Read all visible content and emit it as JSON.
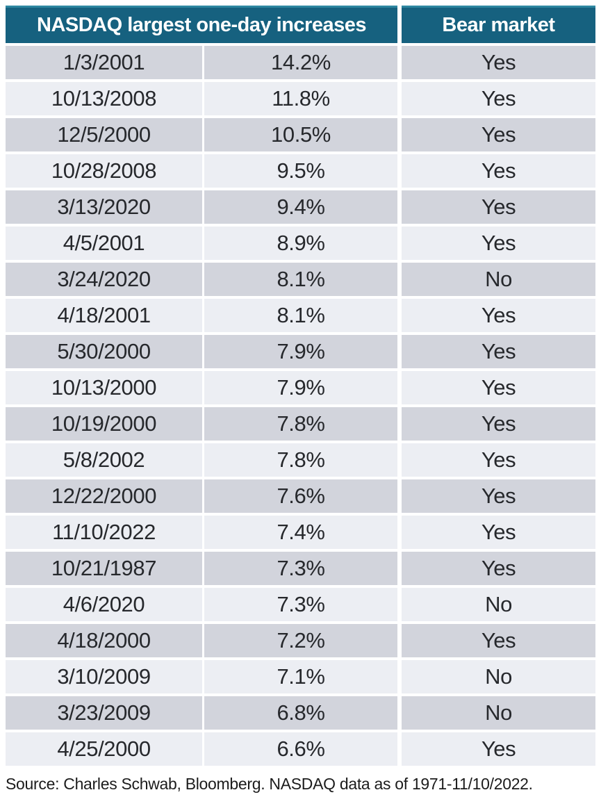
{
  "chart_data": {
    "type": "table",
    "header_main": "NASDAQ largest one-day increases",
    "header_bear": "Bear market",
    "rows": [
      [
        "1/3/2001",
        "14.2%",
        "Yes"
      ],
      [
        "10/13/2008",
        "11.8%",
        "Yes"
      ],
      [
        "12/5/2000",
        "10.5%",
        "Yes"
      ],
      [
        "10/28/2008",
        "9.5%",
        "Yes"
      ],
      [
        "3/13/2020",
        "9.4%",
        "Yes"
      ],
      [
        "4/5/2001",
        "8.9%",
        "Yes"
      ],
      [
        "3/24/2020",
        "8.1%",
        "No"
      ],
      [
        "4/18/2001",
        "8.1%",
        "Yes"
      ],
      [
        "5/30/2000",
        "7.9%",
        "Yes"
      ],
      [
        "10/13/2000",
        "7.9%",
        "Yes"
      ],
      [
        "10/19/2000",
        "7.8%",
        "Yes"
      ],
      [
        "5/8/2002",
        "7.8%",
        "Yes"
      ],
      [
        "12/22/2000",
        "7.6%",
        "Yes"
      ],
      [
        "11/10/2022",
        "7.4%",
        "Yes"
      ],
      [
        "10/21/1987",
        "7.3%",
        "Yes"
      ],
      [
        "4/6/2020",
        "7.3%",
        "No"
      ],
      [
        "4/18/2000",
        "7.2%",
        "Yes"
      ],
      [
        "3/10/2009",
        "7.1%",
        "No"
      ],
      [
        "3/23/2009",
        "6.8%",
        "No"
      ],
      [
        "4/25/2000",
        "6.6%",
        "Yes"
      ]
    ]
  },
  "source_note": "Source: Charles Schwab, Bloomberg. NASDAQ data as of 1971-11/10/2022.",
  "colors": {
    "header-bg": "#16617F",
    "header-edge": "#2E87A1",
    "row-dark": "#D2D4DC",
    "row-light": "#ECEEF3",
    "cell-text": "#26282C",
    "source-text": "#1C1C1C"
  }
}
